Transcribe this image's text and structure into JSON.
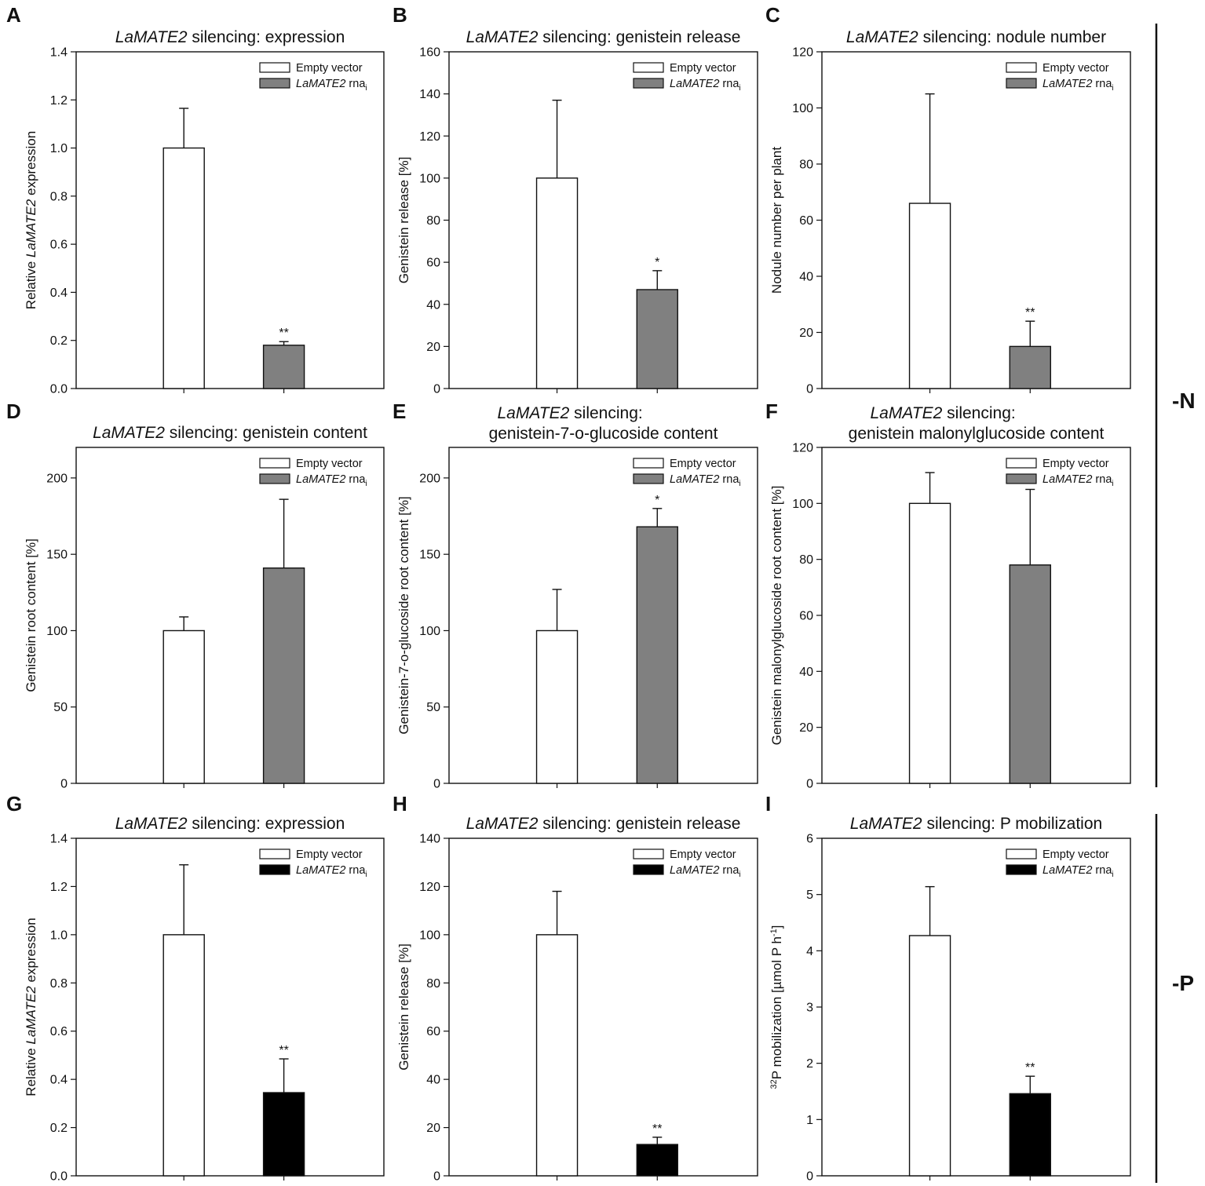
{
  "groups": [
    {
      "label": "-N",
      "panels": [
        "A",
        "B",
        "C",
        "D",
        "E",
        "F"
      ]
    },
    {
      "label": "-P",
      "panels": [
        "G",
        "H",
        "I"
      ]
    }
  ],
  "colors": {
    "empty_vector": "#ffffff",
    "rnai_N": "#808080",
    "rnai_P": "#000000",
    "axis": "#111111"
  },
  "legend": {
    "empty_vector": "Empty vector",
    "rnai": "LaMATE2",
    "rnai_suffix": " rna",
    "rnai_sub": "i"
  },
  "chart_data": [
    {
      "id": "A",
      "type": "bar",
      "title_italic": "LaMATE2",
      "title_rest": " silencing: expression",
      "title_line2": "",
      "ylabel_pre": "Relative ",
      "ylabel_italic": "LaMATE2",
      "ylabel_post": " expression",
      "ylim": [
        0,
        1.4
      ],
      "ticks": [
        0.0,
        0.2,
        0.4,
        0.6,
        0.8,
        1.0,
        1.2,
        1.4
      ],
      "tick_labels": [
        "0.0",
        "0.2",
        "0.4",
        "0.6",
        "0.8",
        "1.0",
        "1.2",
        "1.4"
      ],
      "categories": [
        "Empty vector",
        "LaMATE2 rnai"
      ],
      "values": [
        1.0,
        0.18
      ],
      "errors": [
        0.165,
        0.015
      ],
      "significance": [
        "",
        "**"
      ],
      "rnai_color": "grey"
    },
    {
      "id": "B",
      "type": "bar",
      "title_italic": "LaMATE2",
      "title_rest": " silencing: genistein release",
      "title_line2": "",
      "ylabel_pre": "Genistein release [%]",
      "ylabel_italic": "",
      "ylabel_post": "",
      "ylim": [
        0,
        160
      ],
      "ticks": [
        0,
        20,
        40,
        60,
        80,
        100,
        120,
        140,
        160
      ],
      "tick_labels": [
        "0",
        "20",
        "40",
        "60",
        "80",
        "100",
        "120",
        "140",
        "160"
      ],
      "categories": [
        "Empty vector",
        "LaMATE2 rnai"
      ],
      "values": [
        100,
        47
      ],
      "errors": [
        37,
        9
      ],
      "significance": [
        "",
        "*"
      ],
      "rnai_color": "grey"
    },
    {
      "id": "C",
      "type": "bar",
      "title_italic": "LaMATE2",
      "title_rest": " silencing: nodule number",
      "title_line2": "",
      "ylabel_pre": "Nodule number per plant",
      "ylabel_italic": "",
      "ylabel_post": "",
      "ylim": [
        0,
        120
      ],
      "ticks": [
        0,
        20,
        40,
        60,
        80,
        100,
        120
      ],
      "tick_labels": [
        "0",
        "20",
        "40",
        "60",
        "80",
        "100",
        "120"
      ],
      "categories": [
        "Empty vector",
        "LaMATE2 rnai"
      ],
      "values": [
        66,
        15
      ],
      "errors": [
        39,
        9
      ],
      "significance": [
        "",
        "**"
      ],
      "rnai_color": "grey"
    },
    {
      "id": "D",
      "type": "bar",
      "title_italic": "LaMATE2",
      "title_rest": " silencing: genistein content",
      "title_line2": "",
      "ylabel_pre": "Genistein root content [%]",
      "ylabel_italic": "",
      "ylabel_post": "",
      "ylim": [
        0,
        220
      ],
      "ticks": [
        0,
        50,
        100,
        150,
        200
      ],
      "tick_labels": [
        "0",
        "50",
        "100",
        "150",
        "200"
      ],
      "categories": [
        "Empty vector",
        "LaMATE2 rnai"
      ],
      "values": [
        100,
        141
      ],
      "errors": [
        9,
        45
      ],
      "significance": [
        "",
        ""
      ],
      "rnai_color": "grey"
    },
    {
      "id": "E",
      "type": "bar",
      "title_italic": "LaMATE2",
      "title_rest": " silencing:",
      "title_line2": "genistein-7-o-glucoside content",
      "ylabel_pre": "Genistein-7-o-glucoside root content [%]",
      "ylabel_italic": "",
      "ylabel_post": "",
      "ylim": [
        0,
        220
      ],
      "ticks": [
        0,
        50,
        100,
        150,
        200
      ],
      "tick_labels": [
        "0",
        "50",
        "100",
        "150",
        "200"
      ],
      "categories": [
        "Empty vector",
        "LaMATE2 rnai"
      ],
      "values": [
        100,
        168
      ],
      "errors": [
        27,
        12
      ],
      "significance": [
        "",
        "*"
      ],
      "rnai_color": "grey"
    },
    {
      "id": "F",
      "type": "bar",
      "title_italic": "LaMATE2",
      "title_rest": " silencing:",
      "title_line2": "genistein malonylglucoside content",
      "ylabel_pre": "Genistein malonylglucoside root content [%]",
      "ylabel_italic": "",
      "ylabel_post": "",
      "ylim": [
        0,
        120
      ],
      "ticks": [
        0,
        20,
        40,
        60,
        80,
        100,
        120
      ],
      "tick_labels": [
        "0",
        "20",
        "40",
        "60",
        "80",
        "100",
        "120"
      ],
      "categories": [
        "Empty vector",
        "LaMATE2 rnai"
      ],
      "values": [
        100,
        78
      ],
      "errors": [
        11,
        27
      ],
      "significance": [
        "",
        ""
      ],
      "rnai_color": "grey"
    },
    {
      "id": "G",
      "type": "bar",
      "title_italic": "LaMATE2",
      "title_rest": " silencing: expression",
      "title_line2": "",
      "ylabel_pre": "Relative ",
      "ylabel_italic": "LaMATE2",
      "ylabel_post": " expression",
      "ylim": [
        0,
        1.4
      ],
      "ticks": [
        0.0,
        0.2,
        0.4,
        0.6,
        0.8,
        1.0,
        1.2,
        1.4
      ],
      "tick_labels": [
        "0.0",
        "0.2",
        "0.4",
        "0.6",
        "0.8",
        "1.0",
        "1.2",
        "1.4"
      ],
      "categories": [
        "Empty vector",
        "LaMATE2 rnai"
      ],
      "values": [
        1.0,
        0.345
      ],
      "errors": [
        0.29,
        0.14
      ],
      "significance": [
        "",
        "**"
      ],
      "rnai_color": "black"
    },
    {
      "id": "H",
      "type": "bar",
      "title_italic": "LaMATE2",
      "title_rest": " silencing: genistein release",
      "title_line2": "",
      "ylabel_pre": "Genistein release [%]",
      "ylabel_italic": "",
      "ylabel_post": "",
      "ylim": [
        0,
        140
      ],
      "ticks": [
        0,
        20,
        40,
        60,
        80,
        100,
        120,
        140
      ],
      "tick_labels": [
        "0",
        "20",
        "40",
        "60",
        "80",
        "100",
        "120",
        "140"
      ],
      "categories": [
        "Empty vector",
        "LaMATE2 rnai"
      ],
      "values": [
        100,
        13
      ],
      "errors": [
        18,
        3
      ],
      "significance": [
        "",
        "**"
      ],
      "rnai_color": "black"
    },
    {
      "id": "I",
      "type": "bar",
      "title_italic": "LaMATE2",
      "title_rest": " silencing: P mobilization",
      "title_line2": "",
      "ylabel_pre": "32P mobilization [µmol P h-1]",
      "ylabel_italic": "",
      "ylabel_post": "",
      "ylim": [
        0,
        6
      ],
      "ticks": [
        0,
        1,
        2,
        3,
        4,
        5,
        6
      ],
      "tick_labels": [
        "0",
        "1",
        "2",
        "3",
        "4",
        "5",
        "6"
      ],
      "categories": [
        "Empty vector",
        "LaMATE2 rnai"
      ],
      "values": [
        4.27,
        1.46
      ],
      "errors": [
        0.87,
        0.31
      ],
      "significance": [
        "",
        "**"
      ],
      "rnai_color": "black"
    }
  ]
}
